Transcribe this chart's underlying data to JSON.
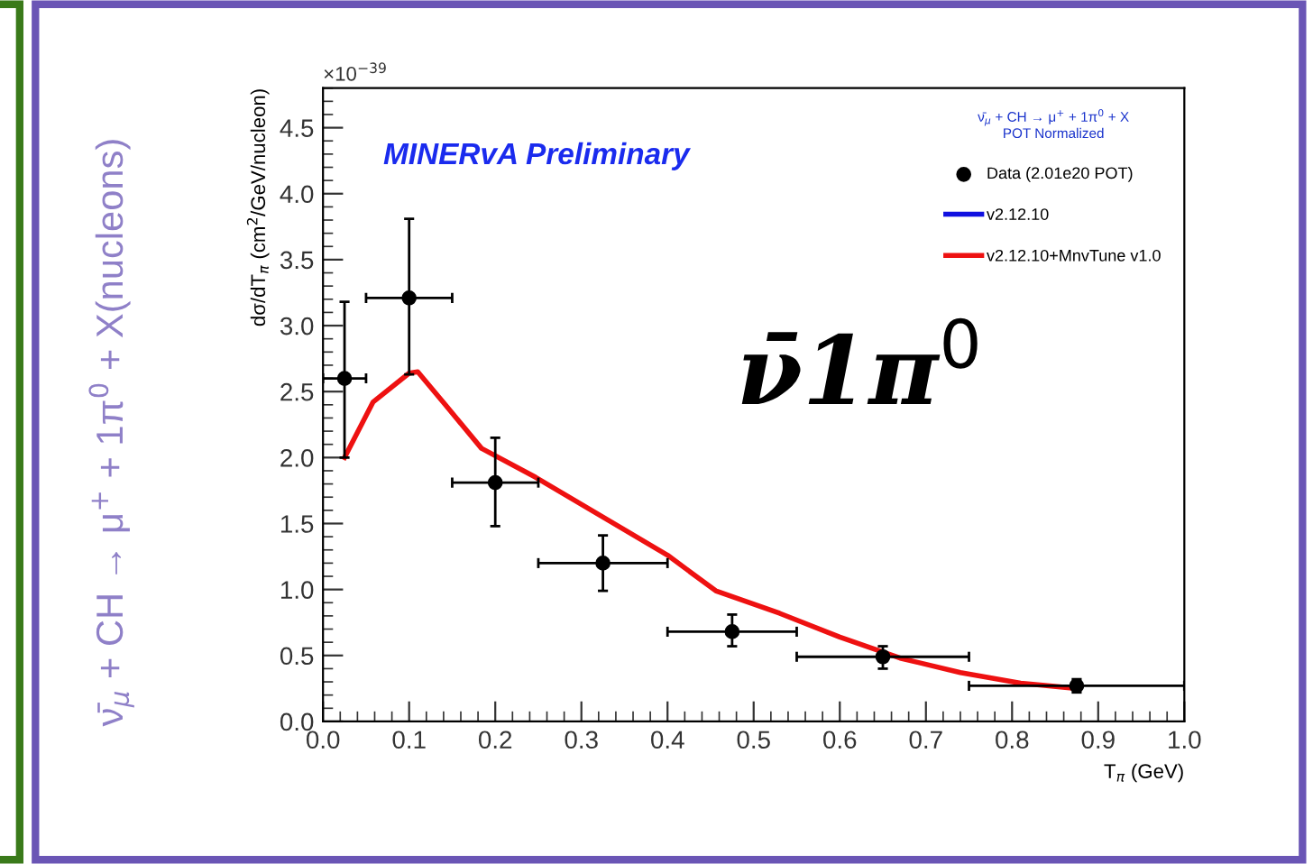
{
  "chart_data": {
    "type": "scatter",
    "xlabel": "T$_{π}$ (GeV)",
    "ylabel": "dσ/dT$_{π}$ (cm$^{2}$/GeV/nucleon)",
    "legend_title": "ν̄$_{μ}$ + CH → μ$^{+}$ + 1π$^{0}$ + X\nPOT Normalized",
    "annotations": [
      "×10$^{−39}$",
      "MINERvA Preliminary",
      "ν̄1π$^{0}$",
      "ν̄$_{μ}$ + CH → μ$^{+}$ + 1π$^{0}$ + X(nucleons)"
    ],
    "xlim": [
      0,
      1.0
    ],
    "xticks": [
      {
        "value": 0,
        "label": "0.0"
      },
      0.1,
      0.2,
      0.3,
      0.4,
      0.5,
      0.6,
      0.7,
      0.8,
      0.9,
      {
        "value": 1.0,
        "label": "1.0"
      }
    ],
    "ylim": [
      0,
      4.8
    ],
    "yticks": [
      {
        "value": 0,
        "label": "0.0"
      },
      0.5,
      {
        "value": 1.0,
        "label": "1.0"
      },
      1.5,
      {
        "value": 2.0,
        "label": "2.0"
      },
      2.5,
      {
        "value": 3.0,
        "label": "3.0"
      },
      3.5,
      {
        "value": 4.0,
        "label": "4.0"
      },
      4.5
    ],
    "grid": false,
    "legend": "top right",
    "series": [
      {
        "name": "Data (2.01e20 POT)",
        "color": "#000000",
        "marker": "circle",
        "x": [
          0.025,
          0.1,
          0.2,
          0.325,
          0.475,
          0.65,
          0.875
        ],
        "values": [
          2.6,
          3.21,
          1.81,
          1.2,
          0.68,
          0.49,
          0.27
        ],
        "errors": [
          [
            2.0,
            3.18
          ],
          [
            2.63,
            3.81
          ],
          [
            1.48,
            2.15
          ],
          [
            0.99,
            1.41
          ],
          [
            0.57,
            0.81
          ],
          [
            0.4,
            0.57
          ],
          [
            0.22,
            0.32
          ]
        ],
        "xerrors": [
          [
            0,
            0.05
          ],
          [
            0.05,
            0.15
          ],
          [
            0.15,
            0.25
          ],
          [
            0.25,
            0.4
          ],
          [
            0.4,
            0.55
          ],
          [
            0.55,
            0.75
          ],
          [
            0.75,
            1.0
          ]
        ]
      },
      {
        "name": "v2.12.10",
        "type": "line",
        "color": "#1010e0",
        "values": [
          null
        ]
      },
      {
        "name": "v2.12.10+MnvTune v1.0",
        "type": "line",
        "color": "#ee1111",
        "x": [
          0.025,
          0.058,
          0.1,
          0.11,
          0.142,
          0.184,
          0.247,
          0.33,
          0.4,
          0.456,
          0.53,
          0.6,
          0.67,
          0.74,
          0.81,
          0.875
        ],
        "values": [
          2.0,
          2.42,
          2.64,
          2.65,
          2.4,
          2.07,
          1.85,
          1.53,
          1.26,
          0.99,
          0.82,
          0.64,
          0.48,
          0.37,
          0.29,
          0.25
        ]
      }
    ]
  }
}
